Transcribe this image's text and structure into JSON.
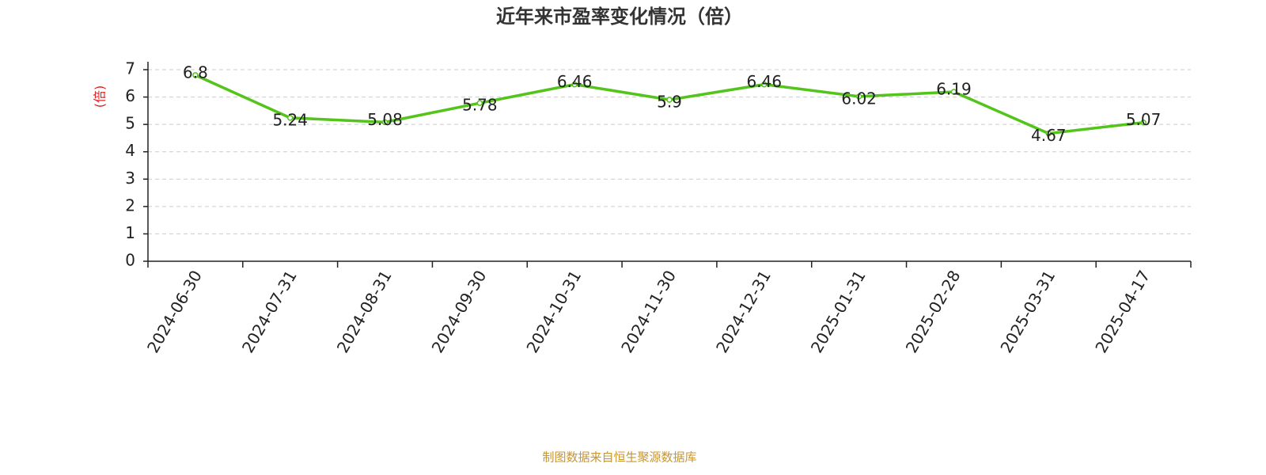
{
  "chart_data": {
    "type": "line",
    "title": "近年来市盈率变化情况（倍）",
    "y_label": "(倍)",
    "source": "制图数据来自恒生聚源数据库",
    "categories": [
      "2024-06-30",
      "2024-07-31",
      "2024-08-31",
      "2024-09-30",
      "2024-10-31",
      "2024-11-30",
      "2024-12-31",
      "2025-01-31",
      "2025-02-28",
      "2025-03-31",
      "2025-04-17"
    ],
    "values": [
      6.8,
      5.24,
      5.08,
      5.78,
      6.46,
      5.9,
      6.46,
      6.02,
      6.19,
      4.67,
      5.07
    ],
    "color": "#52c41a",
    "ylim": [
      0,
      7
    ],
    "yticks": [
      0,
      1,
      2,
      3,
      4,
      5,
      6,
      7
    ],
    "grid": true
  }
}
